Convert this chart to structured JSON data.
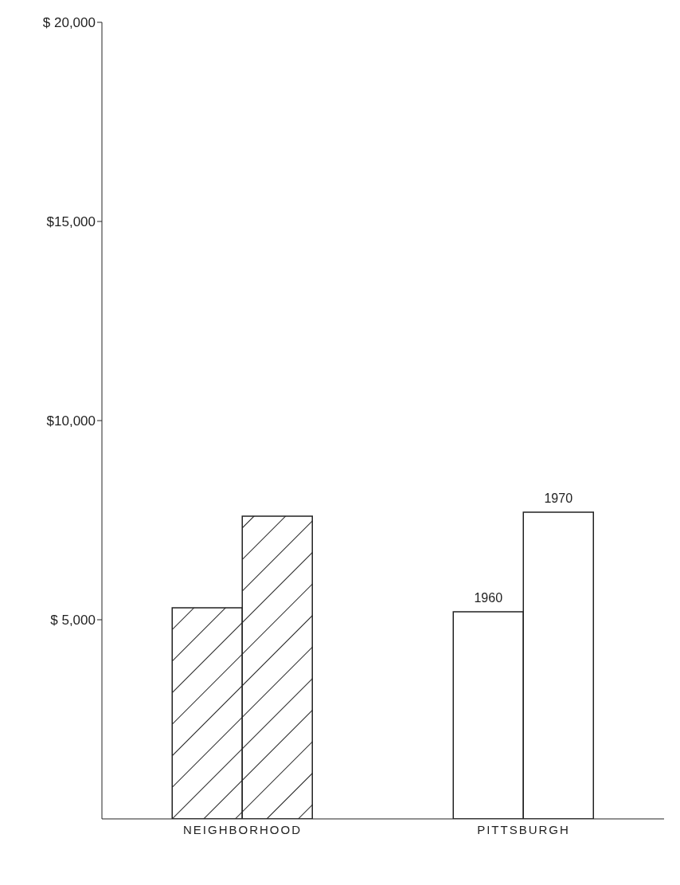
{
  "chart_data": {
    "type": "bar",
    "categories": [
      "NEIGHBORHOOD",
      "PITTSBURGH"
    ],
    "series": [
      {
        "name": "1960",
        "colors": [
          "#222222",
          "#ffffff"
        ],
        "values": [
          5300,
          5200
        ]
      },
      {
        "name": "1970",
        "colors": [
          "#222222",
          "#ffffff"
        ],
        "values": [
          7600,
          7700
        ]
      }
    ],
    "ylim": [
      0,
      20000
    ],
    "yticks": [
      {
        "value": 5000,
        "label": "$ 5,000"
      },
      {
        "value": 10000,
        "label": "$10,000"
      },
      {
        "value": 15000,
        "label": "$15,000"
      },
      {
        "value": 20000,
        "label": "$ 20,000"
      }
    ],
    "grid": false,
    "legend": false
  }
}
